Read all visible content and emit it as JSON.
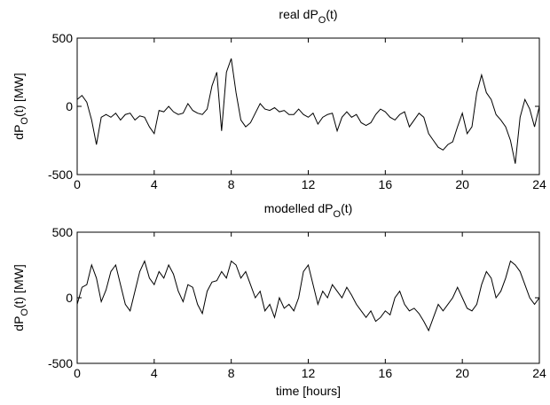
{
  "chart_data": [
    {
      "type": "line",
      "title": {
        "text": "real dP",
        "sub": "O",
        "tail": "(t)"
      },
      "ylabel": {
        "text": "dP",
        "sub": "O",
        "tail": "(t) [MW]"
      },
      "x": [
        0,
        0.25,
        0.5,
        0.75,
        1,
        1.25,
        1.5,
        1.75,
        2,
        2.25,
        2.5,
        2.75,
        3,
        3.25,
        3.5,
        3.75,
        4,
        4.25,
        4.5,
        4.75,
        5,
        5.25,
        5.5,
        5.75,
        6,
        6.25,
        6.5,
        6.75,
        7,
        7.25,
        7.5,
        7.75,
        8,
        8.25,
        8.5,
        8.75,
        9,
        9.25,
        9.5,
        9.75,
        10,
        10.25,
        10.5,
        10.75,
        11,
        11.25,
        11.5,
        11.75,
        12,
        12.25,
        12.5,
        12.75,
        13,
        13.25,
        13.5,
        13.75,
        14,
        14.25,
        14.5,
        14.75,
        15,
        15.25,
        15.5,
        15.75,
        16,
        16.25,
        16.5,
        16.75,
        17,
        17.25,
        17.5,
        17.75,
        18,
        18.25,
        18.5,
        18.75,
        19,
        19.25,
        19.5,
        19.75,
        20,
        20.25,
        20.5,
        20.75,
        21,
        21.25,
        21.5,
        21.75,
        22,
        22.25,
        22.5,
        22.75,
        23,
        23.25,
        23.5,
        23.75,
        24
      ],
      "series": [
        {
          "color": "#000000",
          "values": [
            50,
            80,
            30,
            -100,
            -280,
            -80,
            -60,
            -80,
            -50,
            -100,
            -60,
            -50,
            -100,
            -70,
            -80,
            -150,
            -200,
            -30,
            -40,
            0,
            -40,
            -60,
            -50,
            20,
            -30,
            -50,
            -60,
            -20,
            150,
            250,
            -180,
            250,
            350,
            100,
            -100,
            -150,
            -120,
            -50,
            20,
            -20,
            -30,
            -10,
            -40,
            -30,
            -60,
            -60,
            -20,
            -60,
            -80,
            -50,
            -130,
            -80,
            -60,
            -50,
            -180,
            -80,
            -40,
            -80,
            -60,
            -120,
            -140,
            -120,
            -60,
            -20,
            -40,
            -80,
            -100,
            -60,
            -40,
            -150,
            -100,
            -50,
            -80,
            -200,
            -250,
            -300,
            -320,
            -280,
            -260,
            -150,
            -50,
            -200,
            -150,
            100,
            230,
            100,
            50,
            -60,
            -100,
            -150,
            -250,
            -420,
            -80,
            50,
            -20,
            -150,
            0
          ]
        }
      ],
      "xlim": [
        0,
        24
      ],
      "xticks": [
        0,
        4,
        8,
        12,
        16,
        20,
        24
      ],
      "ylim": [
        -500,
        500
      ],
      "yticks": [
        -500,
        0,
        500
      ],
      "grid": false
    },
    {
      "type": "line",
      "title": {
        "text": "modelled dP",
        "sub": "O",
        "tail": "(t)"
      },
      "ylabel": {
        "text": "dP",
        "sub": "O",
        "tail": "(t) [MW]"
      },
      "xlabel": "time [hours]",
      "x": [
        0,
        0.25,
        0.5,
        0.75,
        1,
        1.25,
        1.5,
        1.75,
        2,
        2.25,
        2.5,
        2.75,
        3,
        3.25,
        3.5,
        3.75,
        4,
        4.25,
        4.5,
        4.75,
        5,
        5.25,
        5.5,
        5.75,
        6,
        6.25,
        6.5,
        6.75,
        7,
        7.25,
        7.5,
        7.75,
        8,
        8.25,
        8.5,
        8.75,
        9,
        9.25,
        9.5,
        9.75,
        10,
        10.25,
        10.5,
        10.75,
        11,
        11.25,
        11.5,
        11.75,
        12,
        12.25,
        12.5,
        12.75,
        13,
        13.25,
        13.5,
        13.75,
        14,
        14.25,
        14.5,
        14.75,
        15,
        15.25,
        15.5,
        15.75,
        16,
        16.25,
        16.5,
        16.75,
        17,
        17.25,
        17.5,
        17.75,
        18,
        18.25,
        18.5,
        18.75,
        19,
        19.25,
        19.5,
        19.75,
        20,
        20.25,
        20.5,
        20.75,
        21,
        21.25,
        21.5,
        21.75,
        22,
        22.25,
        22.5,
        22.75,
        23,
        23.25,
        23.5,
        23.75,
        24
      ],
      "series": [
        {
          "color": "#000000",
          "values": [
            -50,
            80,
            100,
            250,
            150,
            -30,
            60,
            200,
            250,
            100,
            -50,
            -100,
            50,
            200,
            280,
            150,
            100,
            200,
            150,
            250,
            180,
            50,
            -30,
            100,
            80,
            -50,
            -120,
            50,
            120,
            130,
            200,
            150,
            280,
            250,
            150,
            200,
            100,
            0,
            50,
            -100,
            -50,
            -150,
            0,
            -80,
            -50,
            -100,
            0,
            200,
            250,
            100,
            -50,
            50,
            0,
            100,
            50,
            0,
            80,
            20,
            -50,
            -100,
            -150,
            -100,
            -180,
            -150,
            -100,
            -130,
            0,
            50,
            -50,
            -100,
            -80,
            -120,
            -180,
            -250,
            -150,
            -50,
            -100,
            -50,
            0,
            80,
            0,
            -80,
            -100,
            -50,
            100,
            200,
            150,
            0,
            50,
            150,
            280,
            250,
            200,
            100,
            0,
            -50,
            0
          ]
        }
      ],
      "xlim": [
        0,
        24
      ],
      "xticks": [
        0,
        4,
        8,
        12,
        16,
        20,
        24
      ],
      "ylim": [
        -500,
        500
      ],
      "yticks": [
        -500,
        0,
        500
      ],
      "grid": false
    }
  ]
}
